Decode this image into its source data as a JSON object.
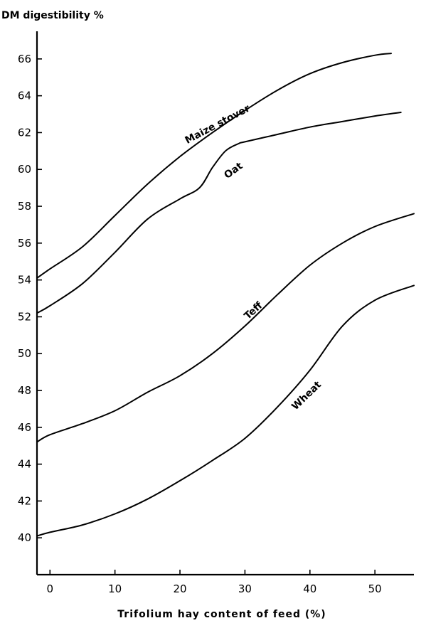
{
  "chart_data": {
    "type": "line",
    "ylabel": "DM digestibility %",
    "xlabel": "Trifolium hay content of feed (%)",
    "xlim": [
      -2,
      56
    ],
    "ylim": [
      38,
      67.5
    ],
    "x_ticks": [
      0,
      10,
      20,
      30,
      40,
      50
    ],
    "y_ticks": [
      40,
      42,
      44,
      46,
      48,
      50,
      52,
      54,
      56,
      58,
      60,
      62,
      64,
      66
    ],
    "grid": false,
    "series": [
      {
        "name": "Maize stover",
        "x": [
          -2,
          0,
          5,
          10,
          15,
          20,
          25,
          30,
          35,
          40,
          45,
          50,
          52.5
        ],
        "y": [
          54.1,
          54.6,
          55.8,
          57.5,
          59.2,
          60.7,
          62.0,
          63.2,
          64.3,
          65.2,
          65.8,
          66.2,
          66.3
        ]
      },
      {
        "name": "Oat",
        "x": [
          -2,
          0,
          5,
          10,
          15,
          20,
          23,
          25,
          27,
          29,
          30,
          35,
          40,
          45,
          50,
          54
        ],
        "y": [
          52.2,
          52.6,
          53.8,
          55.5,
          57.3,
          58.4,
          59.0,
          60.1,
          61.0,
          61.4,
          61.5,
          61.9,
          62.3,
          62.6,
          62.9,
          63.1
        ]
      },
      {
        "name": "Teff",
        "x": [
          -2,
          0,
          5,
          10,
          15,
          20,
          25,
          30,
          35,
          40,
          45,
          50,
          56
        ],
        "y": [
          45.2,
          45.6,
          46.2,
          46.9,
          47.9,
          48.8,
          50.0,
          51.5,
          53.2,
          54.8,
          56.0,
          56.9,
          57.6
        ]
      },
      {
        "name": "Wheat",
        "x": [
          -2,
          0,
          5,
          10,
          15,
          20,
          25,
          30,
          35,
          40,
          45,
          50,
          56
        ],
        "y": [
          40.1,
          40.3,
          40.7,
          41.3,
          42.1,
          43.1,
          44.2,
          45.4,
          47.1,
          49.1,
          51.5,
          52.9,
          53.7
        ]
      }
    ],
    "labels": [
      {
        "text": "Maize stover",
        "x": 26,
        "y": 62.3,
        "angle": -28
      },
      {
        "text": "Oat",
        "x": 28.5,
        "y": 59.8,
        "angle": -36
      },
      {
        "text": "Teff",
        "x": 31.6,
        "y": 52.2,
        "angle": -42
      },
      {
        "text": "Wheat",
        "x": 39.8,
        "y": 47.6,
        "angle": -44
      }
    ]
  }
}
